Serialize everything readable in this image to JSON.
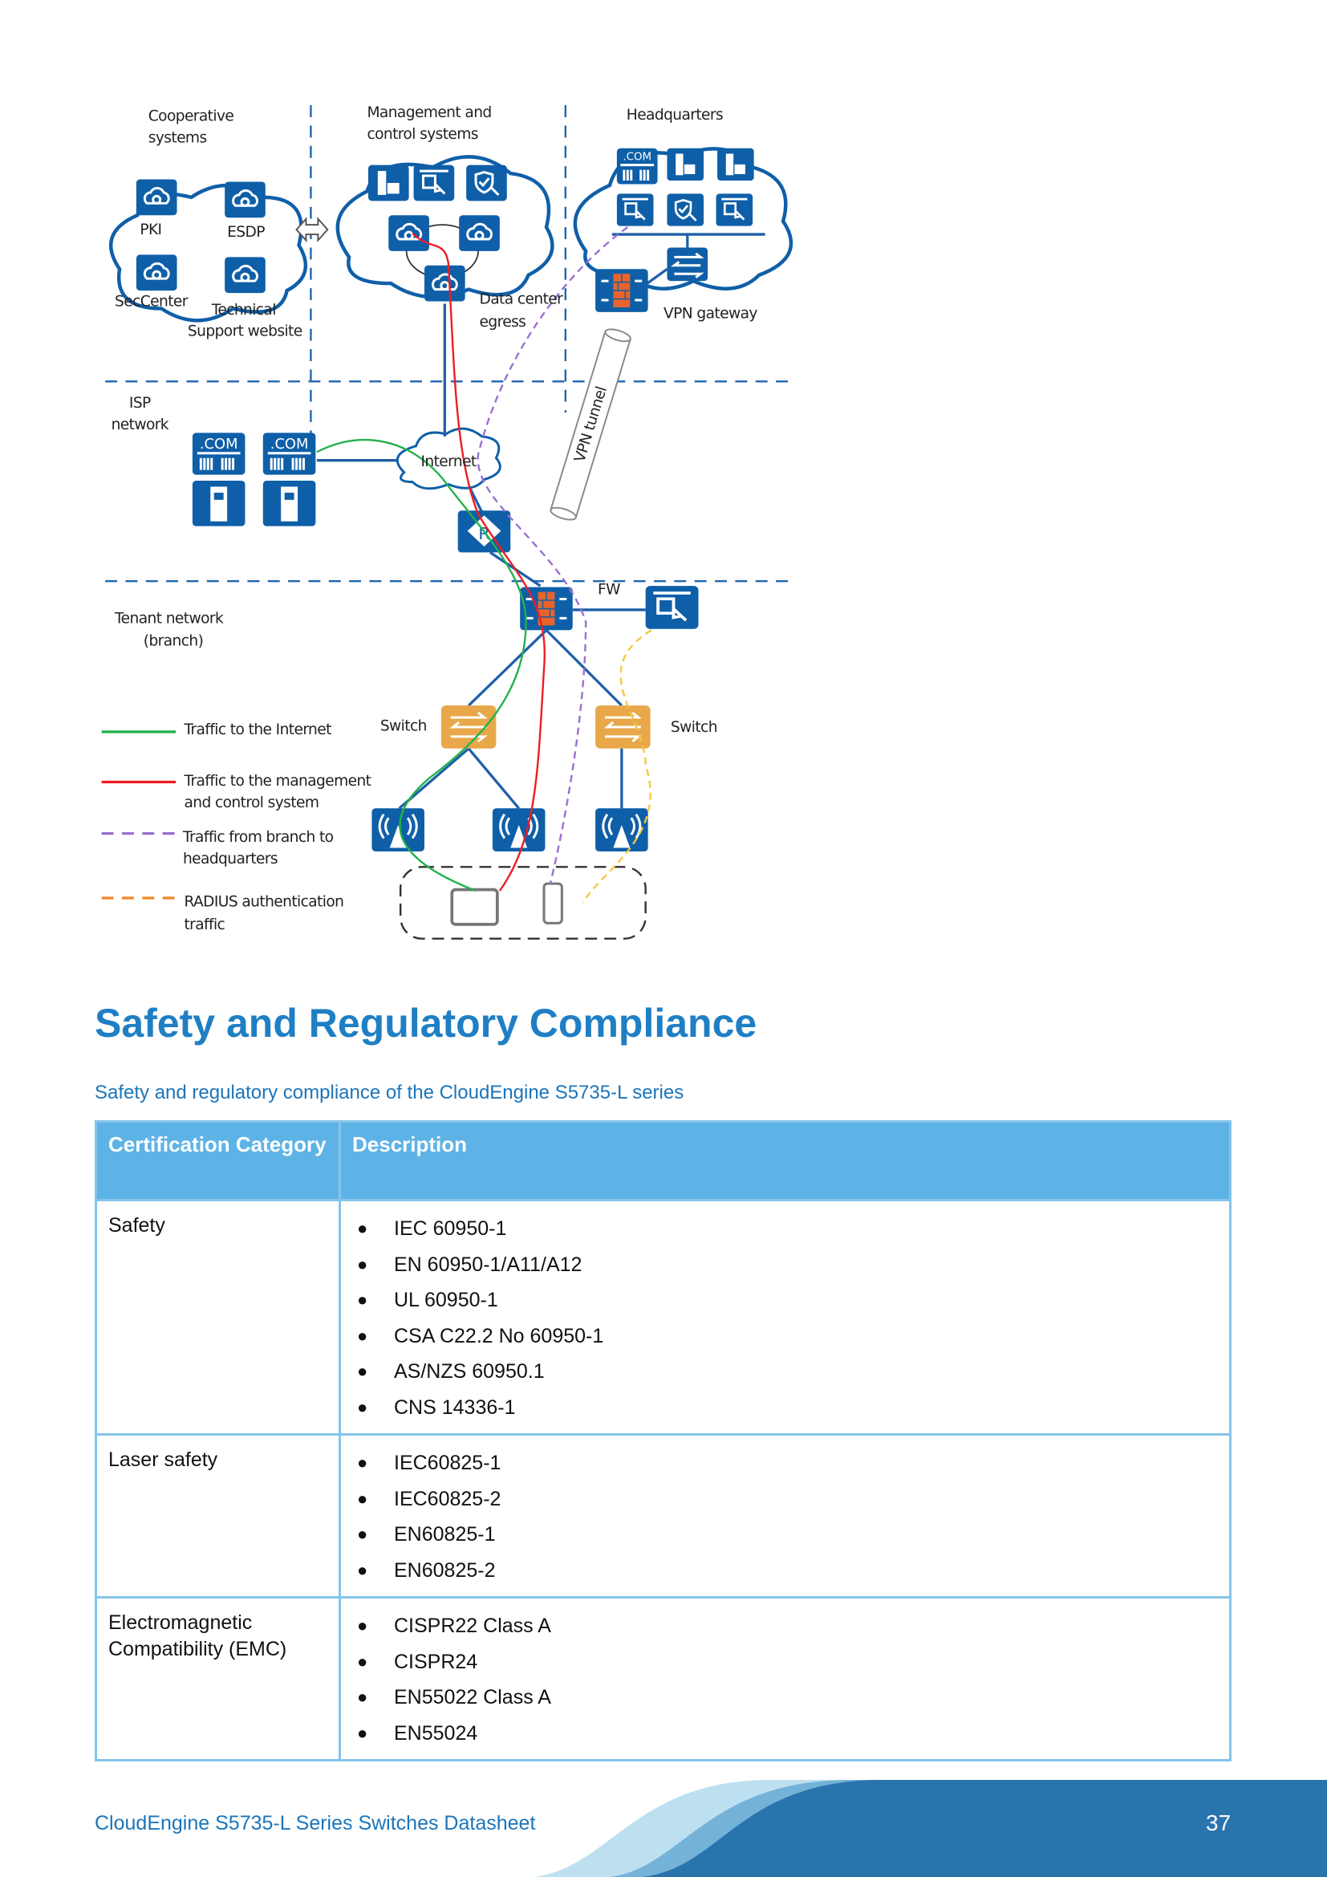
{
  "diagram": {
    "zones": {
      "cooperative": [
        "Cooperative",
        "systems"
      ],
      "management": [
        "Management and",
        "control systems"
      ],
      "headquarters": "Headquarters",
      "isp": [
        "ISP",
        "network"
      ],
      "tenant": [
        "Tenant network",
        "(branch)"
      ]
    },
    "labels": {
      "pki": "PKI",
      "esdp": "ESDP",
      "seccenter": "SecCenter",
      "technical": [
        "Technical",
        "Support website"
      ],
      "data_center_egress": [
        "Data center",
        "egress"
      ],
      "vpn_gateway": "VPN gateway",
      "vpn_tunnel": "VPN tunnel",
      "internet": "Internet",
      "router": "R",
      "fw": "FW",
      "switch_left": "Switch",
      "switch_right": "Switch",
      "com": ".COM"
    },
    "legend": [
      {
        "lines": [
          "Traffic to the Internet"
        ],
        "color": "#22b14c",
        "style": "solid"
      },
      {
        "lines": [
          "Traffic to the management",
          "and control system"
        ],
        "color": "#ee1c24",
        "style": "solid"
      },
      {
        "lines": [
          "Traffic from branch to",
          "headquarters"
        ],
        "color": "#9b6fd0",
        "style": "dashed"
      },
      {
        "lines": [
          "RADIUS authentication",
          "traffic"
        ],
        "color": "#f08a2c",
        "style": "dashed"
      }
    ],
    "colors": {
      "device": "#0f5fa8",
      "switch": "#e8a84a",
      "firewall": "#e8642c",
      "link": "#1f5fa8"
    }
  },
  "section": {
    "heading": "Safety and Regulatory Compliance",
    "caption": "Safety and regulatory compliance of the CloudEngine S5735-L series"
  },
  "table": {
    "headers": [
      "Certification Category",
      "Description"
    ],
    "rows": [
      {
        "category": "Safety",
        "items": [
          "IEC 60950-1",
          "EN 60950-1/A11/A12",
          "UL 60950-1",
          "CSA C22.2 No 60950-1",
          "AS/NZS 60950.1",
          "CNS 14336-1"
        ]
      },
      {
        "category": "Laser safety",
        "items": [
          "IEC60825-1",
          "IEC60825-2",
          "EN60825-1",
          "EN60825-2"
        ]
      },
      {
        "category": "Electromagnetic Compatibility (EMC)",
        "items": [
          "CISPR22 Class A",
          "CISPR24",
          "EN55022 Class A",
          "EN55024"
        ]
      }
    ]
  },
  "footer": {
    "title": "CloudEngine S5735-L Series Switches Datasheet",
    "page": "37",
    "colors": [
      "#bde0f1",
      "#74b2d8",
      "#2a74ae"
    ]
  }
}
